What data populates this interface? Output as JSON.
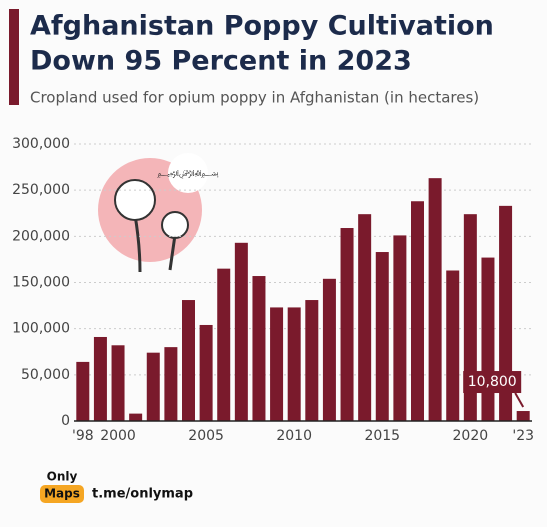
{
  "chart_data": {
    "type": "bar",
    "title_line1": "Afghanistan Poppy Cultivation",
    "title_line2": "Down 95 Percent in 2023",
    "subtitle": "Cropland used for opium poppy in Afghanistan (in hectares)",
    "categories": [
      "'98",
      null,
      "2000",
      null,
      null,
      null,
      null,
      "2005",
      null,
      null,
      null,
      null,
      "2010",
      null,
      null,
      null,
      null,
      "2015",
      null,
      null,
      null,
      null,
      "2020",
      null,
      null,
      "'23"
    ],
    "values": [
      64000,
      91000,
      82000,
      8000,
      74000,
      80000,
      131000,
      104000,
      165000,
      193000,
      157000,
      123000,
      123000,
      131000,
      154000,
      209000,
      224000,
      183000,
      201000,
      238000,
      263000,
      163000,
      224000,
      177000,
      233000,
      10800
    ],
    "value_labels": [
      null,
      null,
      null,
      null,
      null,
      null,
      null,
      null,
      null,
      null,
      null,
      null,
      null,
      null,
      null,
      null,
      null,
      null,
      null,
      null,
      null,
      null,
      null,
      null,
      null,
      "10,800"
    ],
    "color": "#7a1a2c",
    "ylim": [
      0,
      300000
    ],
    "yticks": [
      0,
      {
        "value": 50000,
        "label": "50,000"
      },
      {
        "value": 100000,
        "label": "100,000"
      },
      {
        "value": 150000,
        "label": "150,000"
      },
      {
        "value": 200000,
        "label": "200,000"
      },
      {
        "value": 250000,
        "label": "250,000"
      },
      {
        "value": 300000,
        "label": "300,000"
      }
    ],
    "grid": true
  },
  "brand": {
    "line1": "Only",
    "line2": "Maps",
    "link": "t.me/onlymap"
  }
}
